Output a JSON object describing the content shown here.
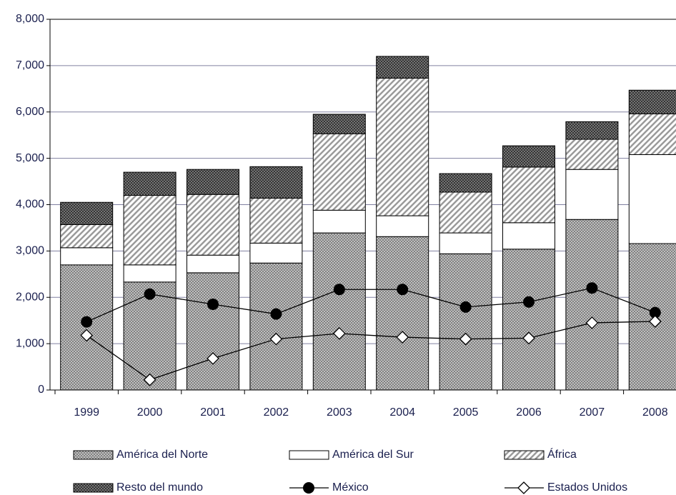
{
  "chart_data": {
    "type": "bar",
    "stacked": true,
    "categories": [
      "1999",
      "2000",
      "2001",
      "2002",
      "2003",
      "2004",
      "2005",
      "2006",
      "2007",
      "2008"
    ],
    "series": [
      {
        "name": "América del Norte",
        "type": "bar",
        "color": "#9a9a9a",
        "pattern": "crosshatch",
        "values": [
          2700,
          2330,
          2530,
          2740,
          3390,
          3310,
          2940,
          3040,
          3680,
          3160
        ]
      },
      {
        "name": "América del Sur",
        "type": "bar",
        "color": "#ffffff",
        "pattern": "none",
        "values": [
          370,
          370,
          380,
          430,
          490,
          450,
          450,
          570,
          1080,
          1920
        ]
      },
      {
        "name": "África",
        "type": "bar",
        "color": "#9a9a9a",
        "pattern": "diagonal",
        "values": [
          500,
          1500,
          1310,
          970,
          1650,
          2970,
          880,
          1200,
          650,
          880
        ]
      },
      {
        "name": "Resto del mundo",
        "type": "bar",
        "color": "#5a5a5a",
        "pattern": "crosshatch",
        "values": [
          480,
          500,
          540,
          680,
          420,
          470,
          400,
          460,
          380,
          510
        ]
      },
      {
        "name": "México",
        "type": "line",
        "color": "#000000",
        "marker": "circle",
        "values": [
          1470,
          2070,
          1850,
          1640,
          2170,
          2170,
          1790,
          1900,
          2200,
          1670
        ]
      },
      {
        "name": "Estados Unidos",
        "type": "line",
        "color": "#000000",
        "marker": "diamond",
        "values": [
          1180,
          220,
          680,
          1100,
          1220,
          1140,
          1100,
          1120,
          1450,
          1480
        ]
      }
    ],
    "ylim": [
      0,
      8000
    ],
    "yticks": [
      0,
      {
        "value": 1000,
        "label": "1,000"
      },
      {
        "value": 2000,
        "label": "2,000"
      },
      {
        "value": 3000,
        "label": "3,000"
      },
      {
        "value": 4000,
        "label": "4,000"
      },
      {
        "value": 5000,
        "label": "5,000"
      },
      {
        "value": 6000,
        "label": "6,000"
      },
      {
        "value": 7000,
        "label": "7,000"
      },
      {
        "value": 8000,
        "label": "8,000"
      }
    ],
    "grid": true,
    "legend": "bottom"
  }
}
